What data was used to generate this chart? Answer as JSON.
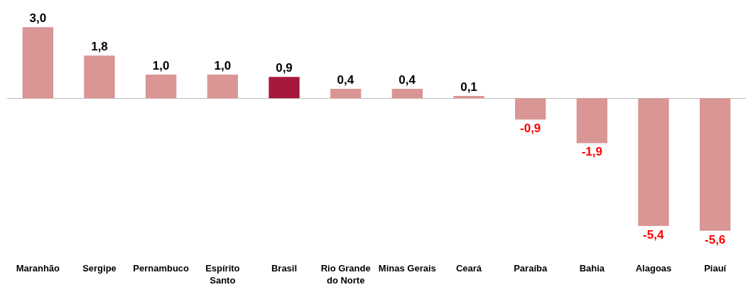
{
  "chart_data": {
    "type": "bar",
    "categories": [
      "Maranhão",
      "Sergipe",
      "Pernambuco",
      "Espírito Santo",
      "Brasil",
      "Rio Grande do Norte",
      "Minas Gerais",
      "Ceará",
      "Paraíba",
      "Bahia",
      "Alagoas",
      "Piauí"
    ],
    "values": [
      3.0,
      1.8,
      1.0,
      1.0,
      0.9,
      0.4,
      0.4,
      0.1,
      -0.9,
      -1.9,
      -5.4,
      -5.6
    ],
    "colors": [
      "#d99694",
      "#d99694",
      "#d99694",
      "#d99694",
      "#a6193c",
      "#d99694",
      "#d99694",
      "#d99694",
      "#d99694",
      "#d99694",
      "#d99694",
      "#d99694"
    ],
    "value_labels": [
      "3,0",
      "1,8",
      "1,0",
      "1,0",
      "0,9",
      "0,4",
      "0,4",
      "0,1",
      "-0,9",
      "-1,9",
      "-5,4",
      "-5,6"
    ],
    "tick_labels": "x"
  }
}
